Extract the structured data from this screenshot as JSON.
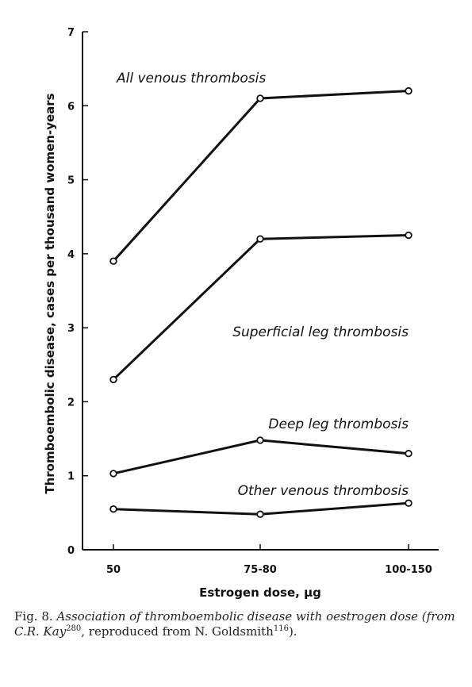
{
  "chart_data": {
    "type": "line",
    "title": "",
    "xlabel": "Estrogen dose, μg",
    "ylabel": "Thromboembolic disease, cases per thousand women-years",
    "categories": [
      "50",
      "75-80",
      "100-150"
    ],
    "ylim": [
      0,
      7
    ],
    "yticks": [
      "0",
      "1",
      "2",
      "3",
      "4",
      "5",
      "6",
      "7"
    ],
    "grid": false,
    "series": [
      {
        "name": "All venous thrombosis",
        "values": [
          3.9,
          6.1,
          6.2
        ]
      },
      {
        "name": "Superficial leg thrombosis",
        "values": [
          2.3,
          4.2,
          4.25
        ]
      },
      {
        "name": "Deep leg thrombosis",
        "values": [
          1.03,
          1.48,
          1.3
        ]
      },
      {
        "name": "Other venous thrombosis",
        "values": [
          0.55,
          0.48,
          0.63
        ]
      }
    ]
  },
  "caption": {
    "prefix": "Fig. 8.",
    "text1": "Association of thromboembolic disease with oestrogen dose (from C.R. Kay",
    "ref1": "280",
    "text2": ", reproduced from N. Goldsmith",
    "ref2": "116",
    "text3": ")."
  }
}
